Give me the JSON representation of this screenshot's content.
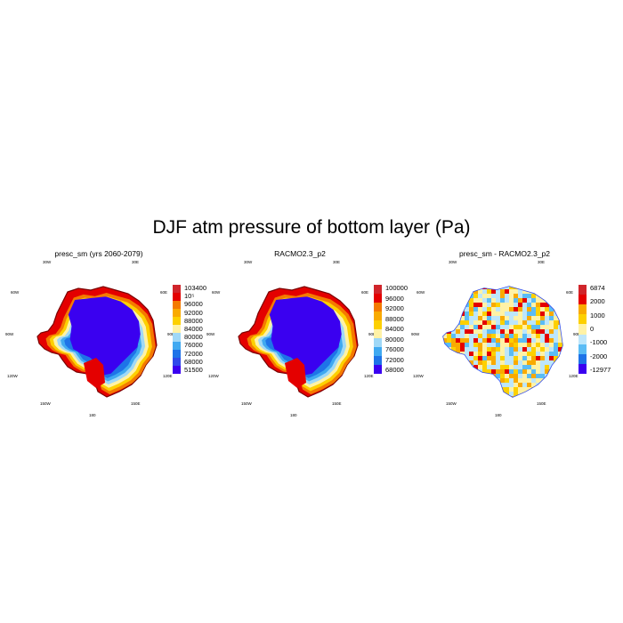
{
  "figure": {
    "title": "DJF atm pressure of bottom layer (Pa)"
  },
  "longitude_labels": {
    "top_left": "30W",
    "top_right": "30E",
    "mid_left_upper": "60W",
    "mid_right_upper": "60E",
    "mid_left": "90W",
    "mid_right": "90E",
    "mid_left_lower": "120W",
    "mid_right_lower": "120E",
    "bottom_left": "150W",
    "bottom_right": "150E",
    "bottom": "180"
  },
  "panels": [
    {
      "title": "presc_sm (yrs 2060-2079)",
      "colorbar_labels": [
        "103400",
        "10⁵",
        "96000",
        "92000",
        "88000",
        "84000",
        "80000",
        "76000",
        "72000",
        "68000",
        "51500"
      ],
      "colors": [
        "#d0252b",
        "#e40000",
        "#f47a00",
        "#f9aa00",
        "#fdd000",
        "#fff2a6",
        "#9fd8f7",
        "#3fa9f1",
        "#1e73e8",
        "#2f49ea",
        "#3a00f0"
      ]
    },
    {
      "title": "RACMO2.3_p2",
      "colorbar_labels": [
        "100000",
        "96000",
        "92000",
        "88000",
        "84000",
        "80000",
        "76000",
        "72000",
        "68000"
      ],
      "colors": [
        "#d0252b",
        "#e40000",
        "#f47a00",
        "#f9aa00",
        "#fdd000",
        "#fff2a6",
        "#9fd8f7",
        "#3fa9f1",
        "#1e73e8",
        "#3a00f0"
      ]
    },
    {
      "title": "presc_sm - RACMO2.3_p2",
      "colorbar_labels": [
        "6874",
        "2000",
        "1000",
        "0",
        "-1000",
        "-2000",
        "-12977"
      ],
      "colors": [
        "#d0252b",
        "#e40000",
        "#f9aa00",
        "#fdd000",
        "#fff2a6",
        "#bde6fb",
        "#5bbcf5",
        "#1e73e8",
        "#3a00f0"
      ]
    }
  ]
}
